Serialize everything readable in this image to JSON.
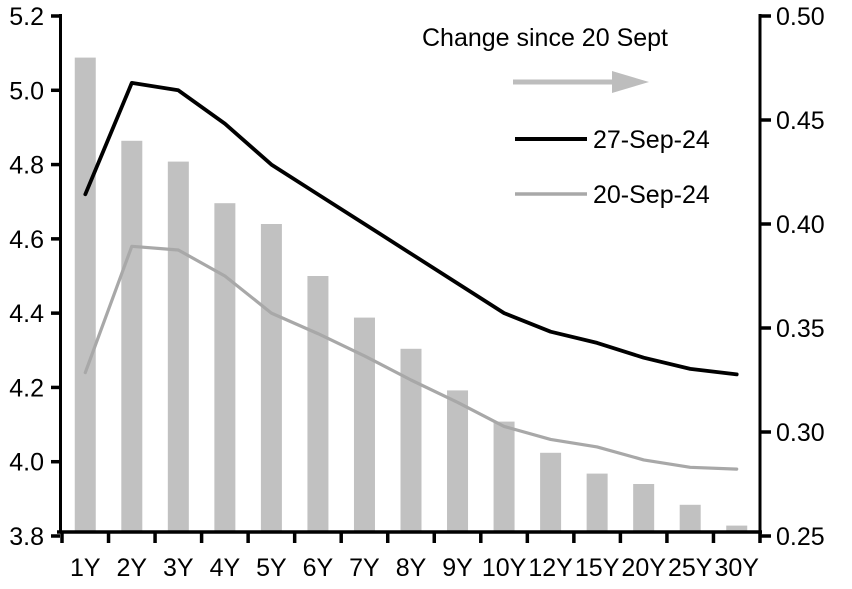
{
  "chart_data": {
    "type": "combo-bar-line",
    "categories": [
      "1Y",
      "2Y",
      "3Y",
      "4Y",
      "5Y",
      "6Y",
      "7Y",
      "8Y",
      "9Y",
      "10Y",
      "12Y",
      "15Y",
      "20Y",
      "25Y",
      "30Y"
    ],
    "left_axis": {
      "min": 3.8,
      "max": 5.2,
      "ticks": [
        "5.2",
        "5.0",
        "4.8",
        "4.6",
        "4.4",
        "4.2",
        "4.0",
        "3.8"
      ],
      "side": "left"
    },
    "right_axis": {
      "min": 0.25,
      "max": 0.5,
      "ticks": [
        "0.50",
        "0.45",
        "0.40",
        "0.35",
        "0.30",
        "0.25"
      ],
      "side": "right"
    },
    "series": [
      {
        "name": "27-Sep-24",
        "type": "line",
        "axis": "left",
        "color": "#000000",
        "values": [
          4.72,
          5.02,
          5.0,
          4.91,
          4.8,
          4.72,
          4.64,
          4.56,
          4.48,
          4.4,
          4.35,
          4.32,
          4.28,
          4.25,
          4.235
        ]
      },
      {
        "name": "20-Sep-24",
        "type": "line",
        "axis": "left",
        "color": "#a8a8a8",
        "values": [
          4.24,
          4.58,
          4.57,
          4.5,
          4.4,
          4.345,
          4.285,
          4.22,
          4.16,
          4.095,
          4.06,
          4.04,
          4.005,
          3.985,
          3.98
        ]
      },
      {
        "name": "Change since 20 Sept",
        "type": "bar",
        "axis": "right",
        "color": "#c1c1c1",
        "values": [
          0.48,
          0.44,
          0.43,
          0.41,
          0.4,
          0.375,
          0.355,
          0.34,
          0.32,
          0.305,
          0.29,
          0.28,
          0.275,
          0.265,
          0.255
        ]
      }
    ],
    "legend": {
      "title": "Change since 20 Sept",
      "arrow_icon": "right-arrow",
      "entries": [
        "27-Sep-24",
        "20-Sep-24"
      ],
      "position": "top-right"
    },
    "grid": false
  },
  "colors": {
    "background": "#ffffff",
    "axis": "#000000",
    "text": "#000000",
    "bar": "#c1c1c1",
    "line_27sep": "#000000",
    "line_20sep": "#a8a8a8",
    "arrow": "#bdbdbd"
  }
}
